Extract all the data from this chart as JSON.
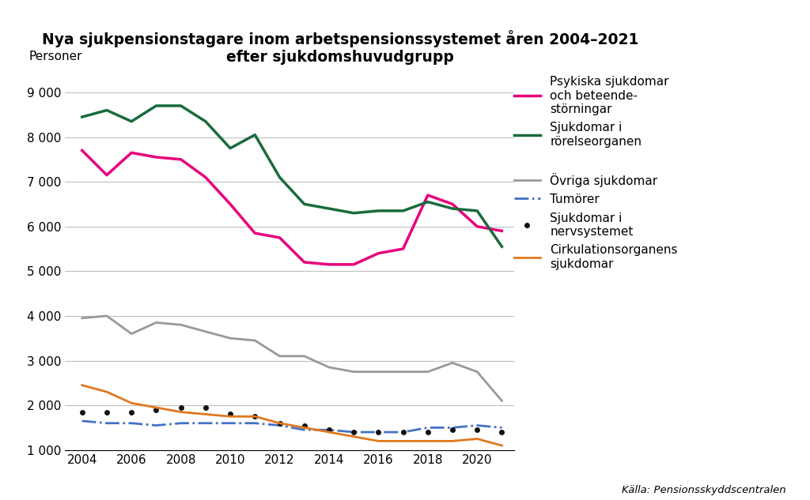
{
  "title_line1": "Nya sjukpensionstagare inom arbetspensionssystemet åren 2004–2021",
  "title_line2": "efter sjukdomshuvudgrupp",
  "ylabel": "Personer",
  "source": "Källa: Pensionsskyddscentralen",
  "years": [
    2004,
    2005,
    2006,
    2007,
    2008,
    2009,
    2010,
    2011,
    2012,
    2013,
    2014,
    2015,
    2016,
    2017,
    2018,
    2019,
    2020,
    2021
  ],
  "series": [
    {
      "label": "Psykiska sjukdomar\noch beteende-\nstörningar",
      "color": "#e6007e",
      "linestyle": "solid",
      "linewidth": 2.5,
      "marker": null,
      "values": [
        7700,
        7150,
        7650,
        7550,
        7500,
        7100,
        6500,
        5850,
        5750,
        5200,
        5150,
        5150,
        5400,
        5500,
        6700,
        6500,
        6000,
        5900
      ]
    },
    {
      "label": "Sjukdomar i\nrörelseorganen",
      "color": "#1a6b3c",
      "linestyle": "solid",
      "linewidth": 2.5,
      "marker": null,
      "values": [
        8450,
        8600,
        8350,
        8700,
        8700,
        8350,
        7750,
        8050,
        7100,
        6500,
        6400,
        6300,
        6350,
        6350,
        6550,
        6400,
        6350,
        5550
      ]
    },
    {
      "label": "Övriga sjukdomar",
      "color": "#999999",
      "linestyle": "solid",
      "linewidth": 2.0,
      "marker": null,
      "values": [
        3950,
        4000,
        3600,
        3850,
        3800,
        3650,
        3500,
        3450,
        3100,
        3100,
        2850,
        2750,
        2750,
        2750,
        2750,
        2950,
        2750,
        2100
      ]
    },
    {
      "label": "Tumörer",
      "color": "#4472c4",
      "linestyle": "dashdot",
      "linewidth": 2.0,
      "marker": null,
      "values": [
        1650,
        1600,
        1600,
        1550,
        1600,
        1600,
        1600,
        1600,
        1550,
        1450,
        1450,
        1400,
        1400,
        1400,
        1500,
        1500,
        1550,
        1500
      ]
    },
    {
      "label": "Sjukdomar i\nnervsystemet",
      "color": "#111111",
      "linestyle": "dotted",
      "linewidth": 2.5,
      "marker": "o",
      "values": [
        1850,
        1850,
        1850,
        1900,
        1950,
        1950,
        1800,
        1750,
        1600,
        1550,
        1450,
        1400,
        1400,
        1400,
        1400,
        1450,
        1450,
        1400
      ]
    },
    {
      "label": "Cirkulationsorganens\nsjukdomar",
      "color": "#e07820",
      "linestyle": "solid",
      "linewidth": 2.0,
      "marker": null,
      "values": [
        2450,
        2300,
        2050,
        1950,
        1850,
        1800,
        1750,
        1750,
        1600,
        1500,
        1400,
        1300,
        1200,
        1200,
        1200,
        1200,
        1250,
        1100
      ]
    }
  ],
  "ylim": [
    1000,
    9500
  ],
  "yticks": [
    1000,
    2000,
    3000,
    4000,
    5000,
    6000,
    7000,
    8000,
    9000
  ],
  "ytick_labels": [
    "1 000",
    "2 000",
    "3 000",
    "4 000",
    "5 000",
    "6 000",
    "7 000",
    "8 000",
    "9 000"
  ],
  "xticks": [
    2004,
    2006,
    2008,
    2010,
    2012,
    2014,
    2016,
    2018,
    2020
  ],
  "background_color": "#ffffff",
  "grid_color": "#c0c0c0",
  "title_fontsize": 13.5,
  "legend_fontsize": 11,
  "axis_fontsize": 11
}
